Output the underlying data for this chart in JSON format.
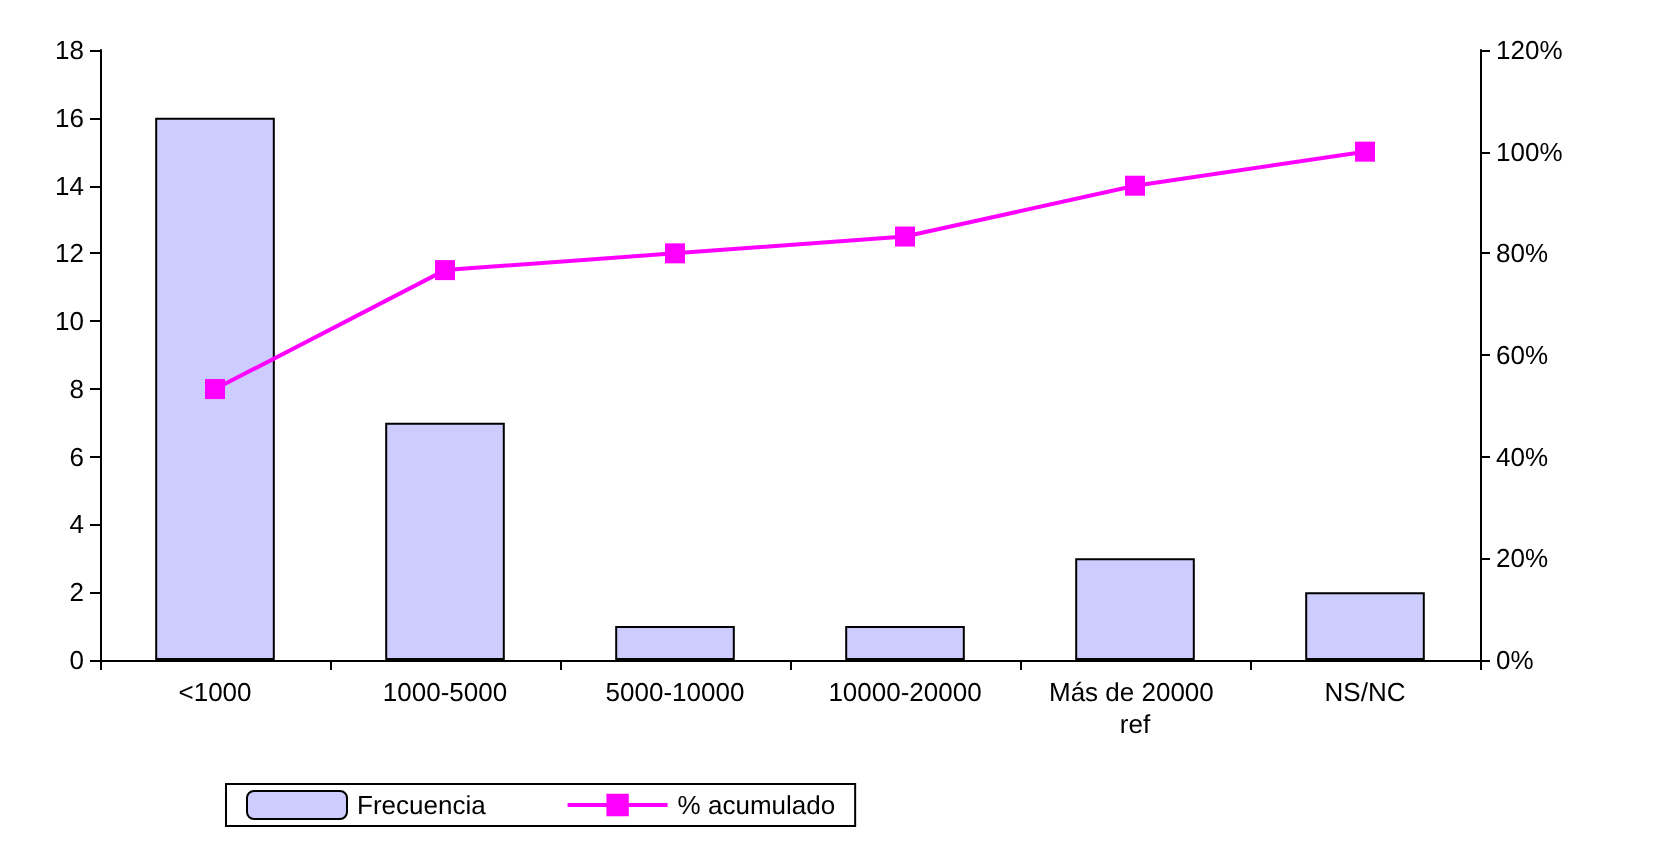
{
  "chart_data": {
    "type": "bar",
    "categories": [
      "<1000",
      "1000-5000",
      "5000-10000",
      "10000-20000",
      "Más de 20000 ref",
      "NS/NC"
    ],
    "series": [
      {
        "name": "Frecuencia",
        "color": "#ccccff",
        "values": [
          16,
          7,
          1,
          1,
          3,
          2
        ]
      },
      {
        "name": "% acumulado",
        "type": "line",
        "axis": "y2",
        "color": "#ff00ff",
        "marker": "square",
        "values": [
          53.3,
          76.7,
          80,
          83.3,
          93.3,
          100
        ]
      }
    ],
    "ylim": [
      0,
      18
    ],
    "yticks": [
      0,
      2,
      4,
      6,
      8,
      10,
      12,
      14,
      16,
      18
    ],
    "y2lim": [
      0,
      120
    ],
    "y2ticks": [
      {
        "value": 0,
        "label": "0%"
      },
      {
        "value": 20,
        "label": "20%"
      },
      {
        "value": 40,
        "label": "40%"
      },
      {
        "value": 60,
        "label": "60%"
      },
      {
        "value": 80,
        "label": "80%"
      },
      {
        "value": 100,
        "label": "100%"
      },
      {
        "value": 120,
        "label": "120%"
      }
    ],
    "legend": "bottom"
  }
}
